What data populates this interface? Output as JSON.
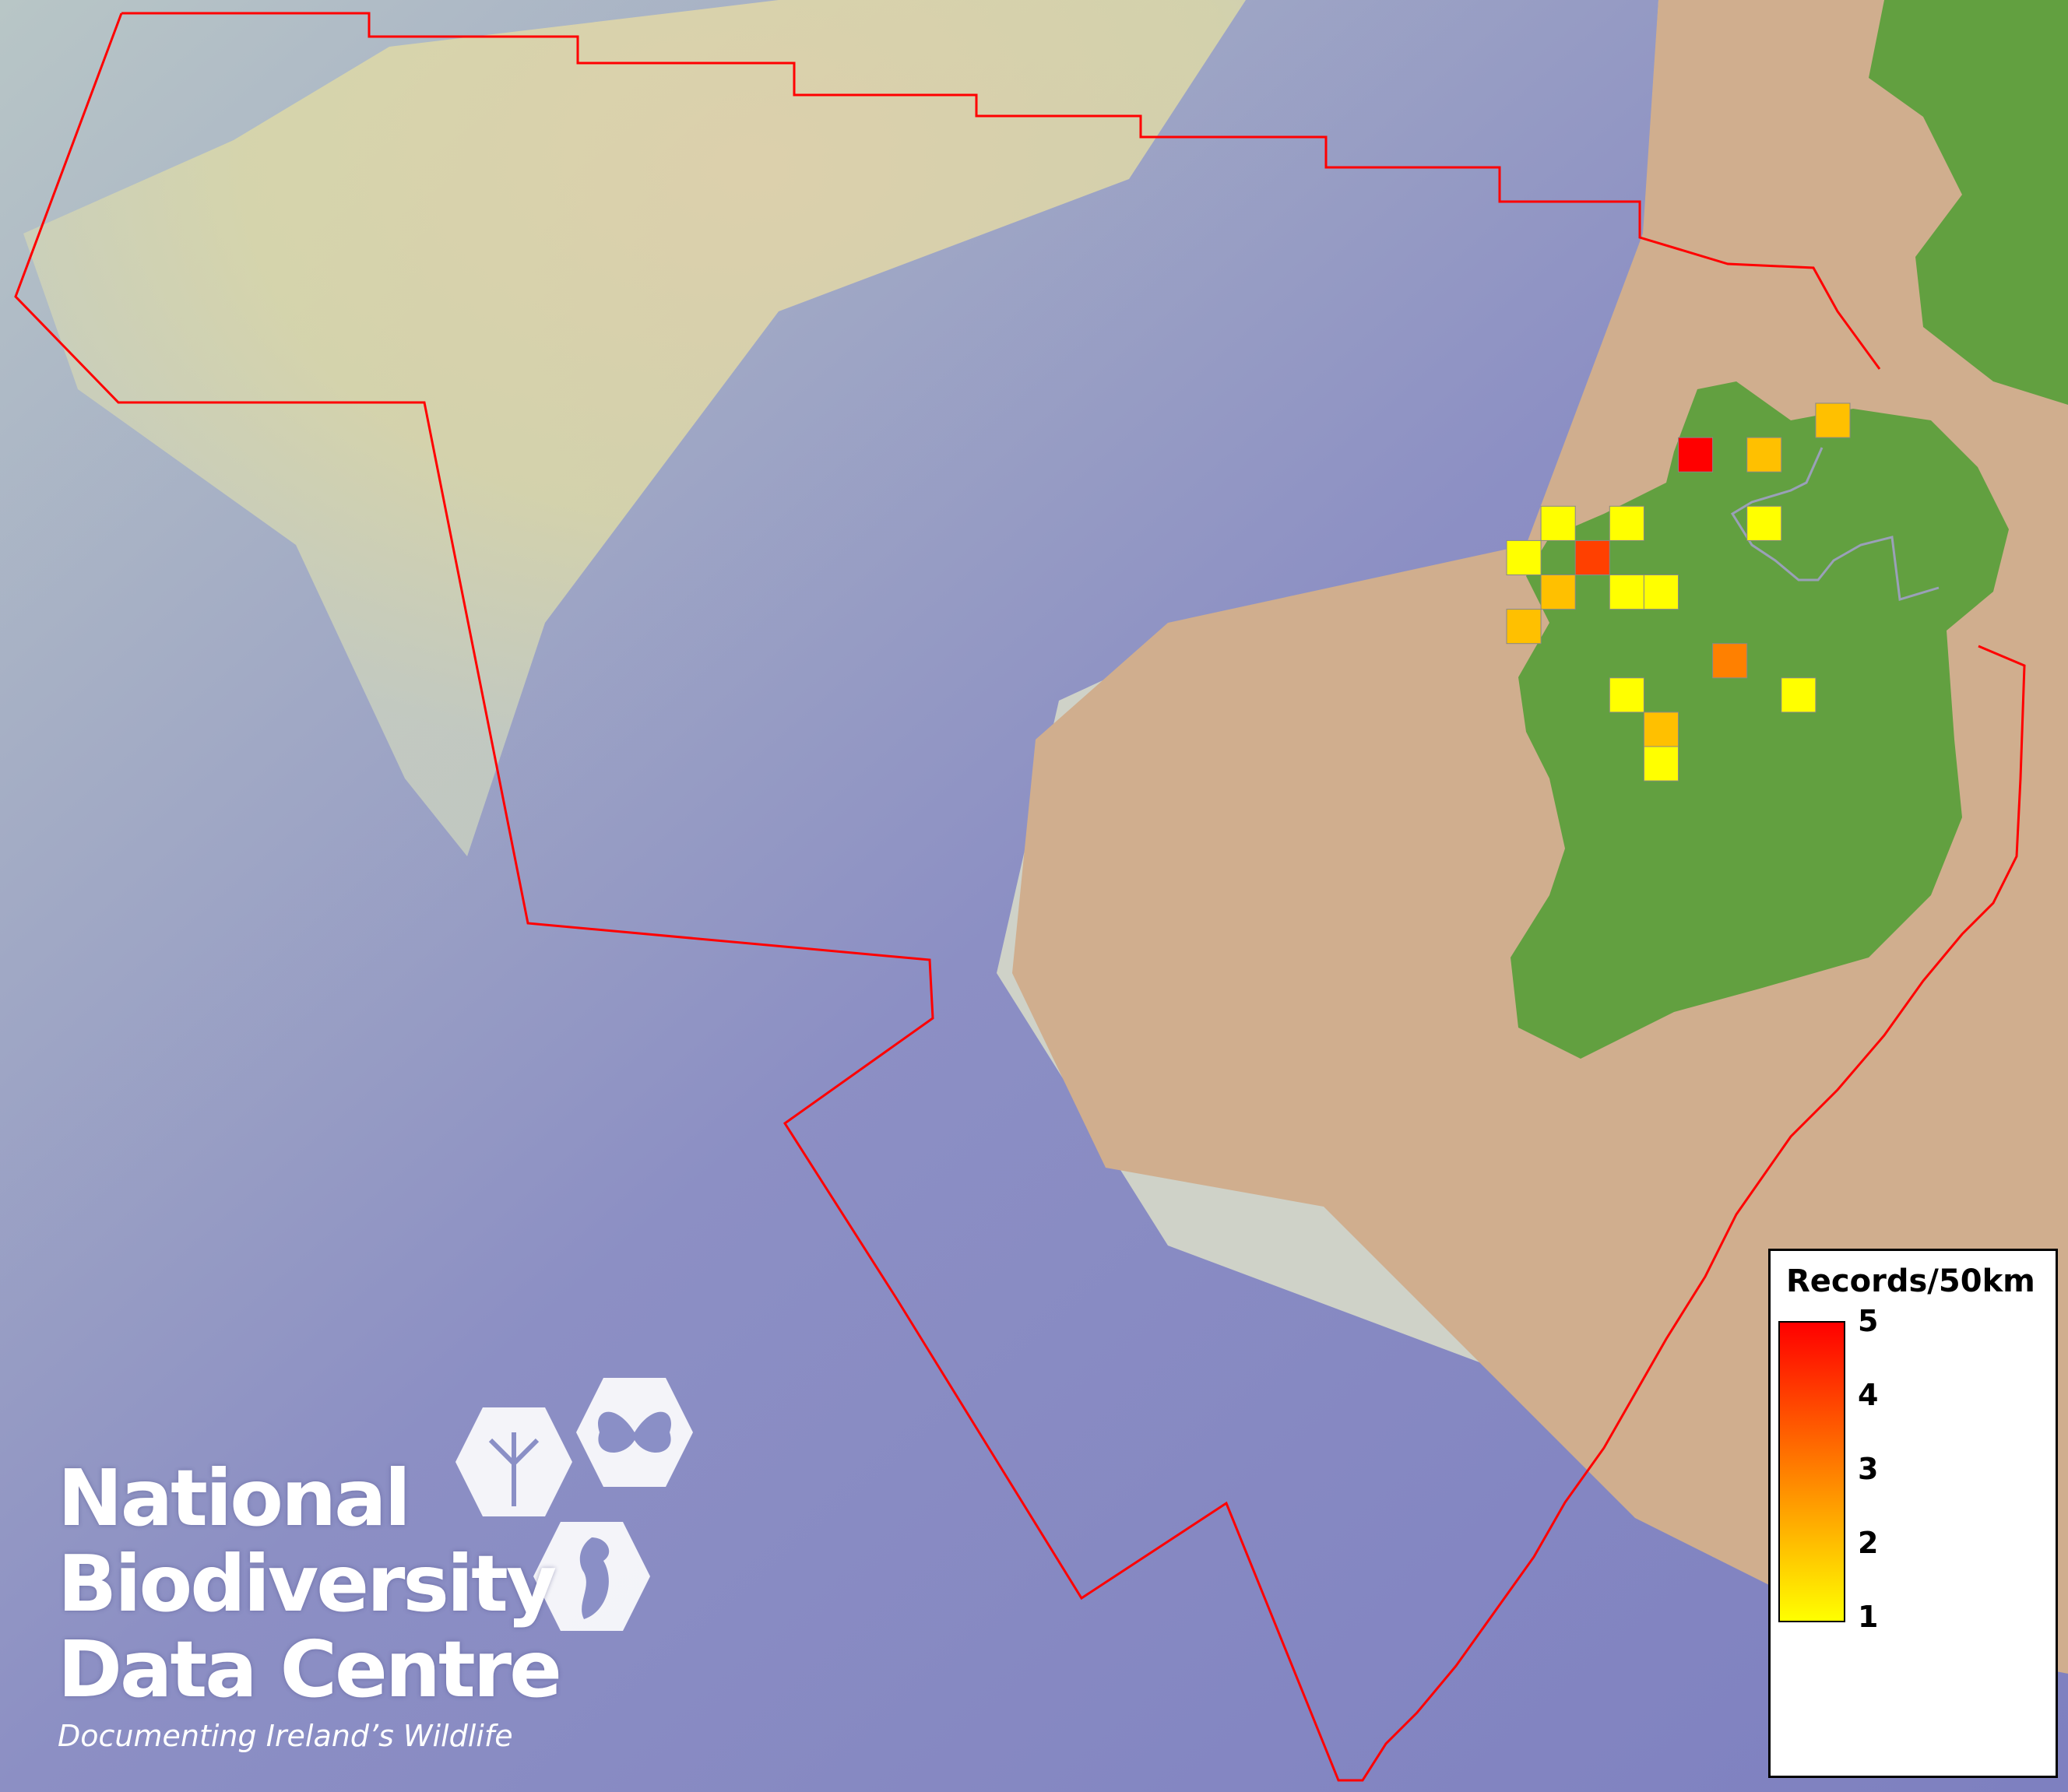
{
  "map": {
    "legend": {
      "title": "Records/50km",
      "ticks": [
        "5",
        "4",
        "3",
        "2",
        "1"
      ],
      "colors": {
        "1": "#ffff00",
        "2": "#ffc000",
        "3": "#ff8000",
        "4": "#ff4000",
        "5": "#ff0000"
      }
    },
    "grid_cells": [
      {
        "col": 5,
        "row": 1,
        "value": 5
      },
      {
        "col": 7,
        "row": 1,
        "value": 2
      },
      {
        "col": 9,
        "row": 0,
        "value": 2
      },
      {
        "col": 1,
        "row": 3,
        "value": 1
      },
      {
        "col": 3,
        "row": 3,
        "value": 1
      },
      {
        "col": 7,
        "row": 3,
        "value": 1
      },
      {
        "col": 0,
        "row": 4,
        "value": 1
      },
      {
        "col": 2,
        "row": 4,
        "value": 4
      },
      {
        "col": 1,
        "row": 5,
        "value": 2
      },
      {
        "col": 3,
        "row": 5,
        "value": 1
      },
      {
        "col": 4,
        "row": 5,
        "value": 1
      },
      {
        "col": 0,
        "row": 6,
        "value": 2
      },
      {
        "col": 6,
        "row": 7,
        "value": 3
      },
      {
        "col": 3,
        "row": 8,
        "value": 1
      },
      {
        "col": 8,
        "row": 8,
        "value": 1
      },
      {
        "col": 4,
        "row": 9,
        "value": 2
      },
      {
        "col": 4,
        "row": 10,
        "value": 1
      }
    ],
    "boundary_color": "#ff0000",
    "land_color": "#62a040"
  },
  "logo": {
    "lines": [
      "National",
      "Biodiversity",
      "Data Centre"
    ],
    "tagline": "Documenting Ireland’s Wildlife"
  }
}
